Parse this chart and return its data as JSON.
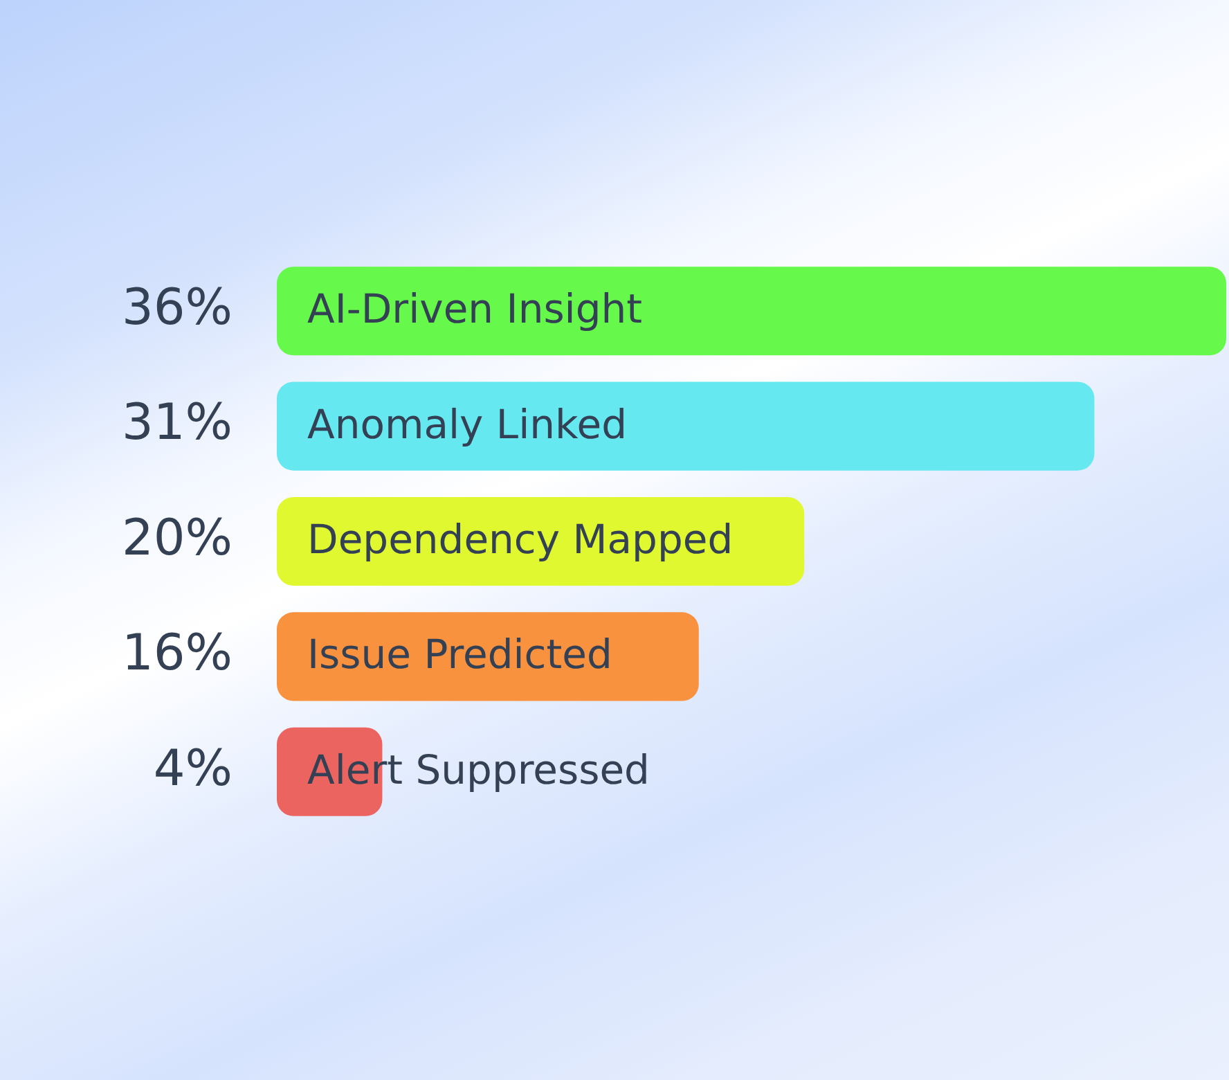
{
  "chart_data": {
    "type": "bar",
    "orientation": "horizontal",
    "tick_labels": "y",
    "categories": [
      "AI-Driven Insight",
      "Anomaly Linked",
      "Dependency Mapped",
      "Issue Predicted",
      "Alert Suppressed"
    ],
    "values": [
      36,
      31,
      20,
      16,
      4
    ],
    "value_labels": [
      "36%",
      "31%",
      "20%",
      "16%",
      "4%"
    ],
    "colors": [
      "#66f84a",
      "#66e8f0",
      "#e0f82f",
      "#f9923f",
      "#ec6460"
    ]
  }
}
